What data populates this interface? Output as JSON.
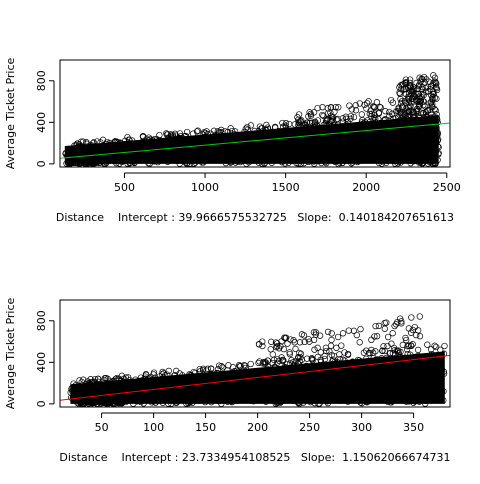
{
  "chart_data": [
    {
      "type": "scatter",
      "ylabel": "Average Ticket Price",
      "xlabel": "Distance    Intercept : 39.9666575532725   Slope:  0.140184207651613",
      "xlim": [
        100,
        2520
      ],
      "ylim": [
        -30,
        1000
      ],
      "x_ticks": [
        500,
        1000,
        1500,
        2000,
        2500
      ],
      "y_ticks": [
        0,
        400,
        800
      ],
      "grid": false,
      "legend": "none",
      "point_color": "#000000",
      "line_color": "#00cc00",
      "regression": {
        "intercept": 39.9666575532725,
        "slope": 0.140184207651613
      },
      "clusters": [
        {
          "x_range": [
            130,
            2450
          ],
          "y_range": [
            0,
            560
          ]
        },
        {
          "x_range": [
            150,
            350
          ],
          "y_range": [
            0,
            310
          ]
        },
        {
          "x_range": [
            1550,
            2450
          ],
          "y_range": [
            0,
            700
          ]
        },
        {
          "x_range": [
            2200,
            2450
          ],
          "y_range": [
            0,
            880
          ]
        }
      ]
    },
    {
      "type": "scatter",
      "ylabel": "Average Ticket Price",
      "xlabel": "Distance    Intercept : 23.7334954108525   Slope:  1.15062066674731",
      "xlim": [
        10,
        385
      ],
      "ylim": [
        -30,
        1000
      ],
      "x_ticks": [
        50,
        100,
        150,
        200,
        250,
        300,
        350
      ],
      "y_ticks": [
        0,
        400,
        800
      ],
      "grid": false,
      "legend": "none",
      "point_color": "#000000",
      "line_color": "#ff0000",
      "regression": {
        "intercept": 23.7334954108525,
        "slope": 1.15062066674731
      },
      "clusters": [
        {
          "x_range": [
            20,
            380
          ],
          "y_range": [
            0,
            600
          ]
        },
        {
          "x_range": [
            30,
            70
          ],
          "y_range": [
            0,
            310
          ]
        },
        {
          "x_range": [
            200,
            360
          ],
          "y_range": [
            0,
            900
          ]
        }
      ]
    }
  ]
}
